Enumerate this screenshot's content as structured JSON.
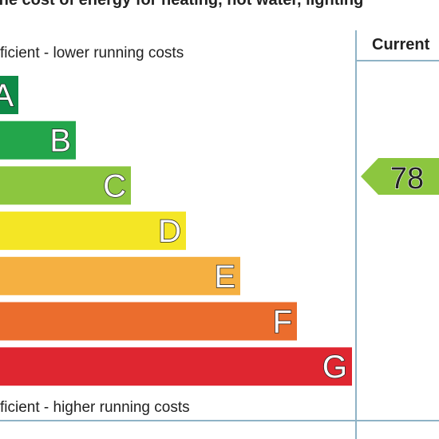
{
  "header": {
    "title": "the cost of energy for heating, hot water, lighting",
    "column": "Current"
  },
  "notes": {
    "top": "ficient - lower running costs",
    "bottom": "ficient - higher running costs"
  },
  "bands": [
    {
      "letter": "A",
      "color": "#0e8a47"
    },
    {
      "letter": "B",
      "color": "#23a64b"
    },
    {
      "letter": "C",
      "color": "#8cc63f"
    },
    {
      "letter": "D",
      "color": "#f4e625"
    },
    {
      "letter": "E",
      "color": "#f5b041"
    },
    {
      "letter": "F",
      "color": "#eb6d2d"
    },
    {
      "letter": "G",
      "color": "#df2630"
    }
  ],
  "current": {
    "value": "78",
    "color": "#8cc63f"
  }
}
